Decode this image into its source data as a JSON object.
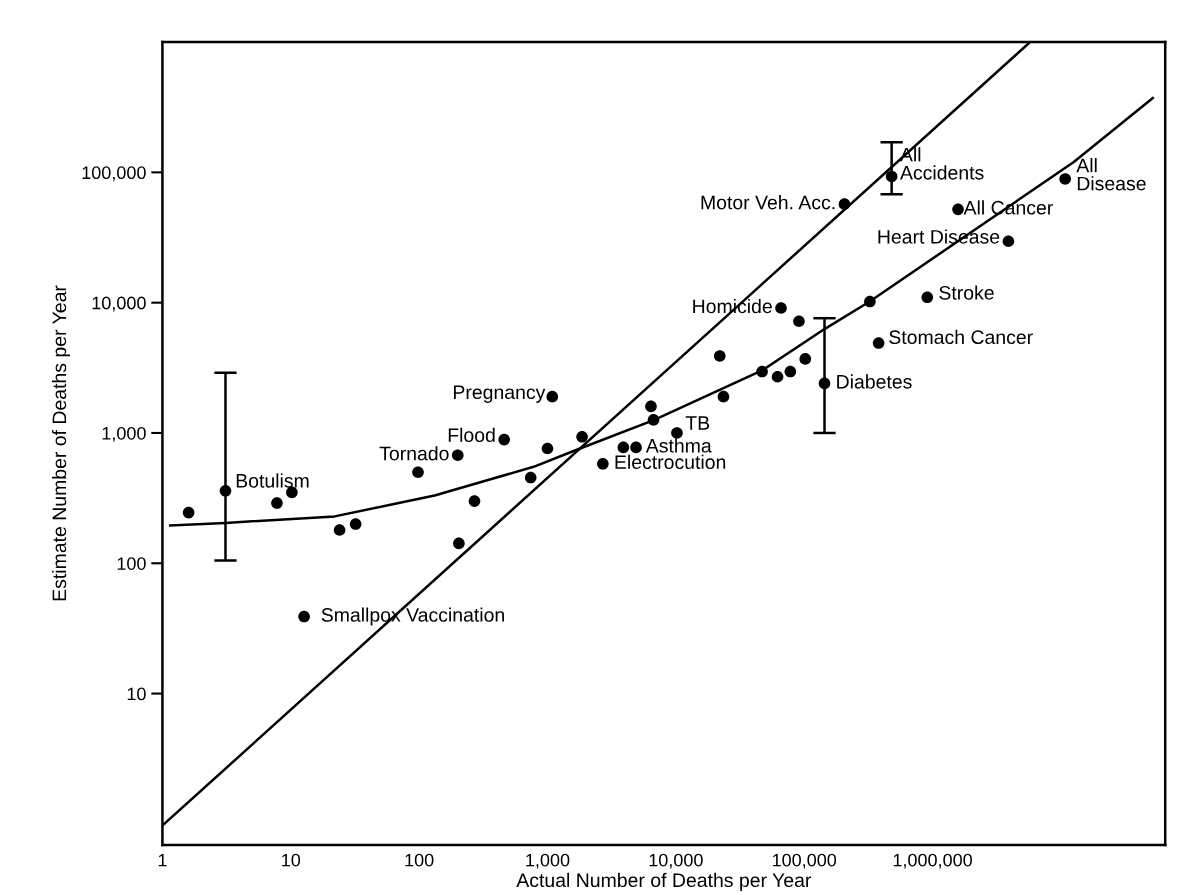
{
  "chart_data": {
    "type": "scatter",
    "xlabel": "Actual Number of Deaths per Year",
    "ylabel": "Estimate Number of Deaths per Year",
    "log": "xy",
    "grid": false,
    "legend": false,
    "line_style": "solid",
    "xlim": [
      1,
      65000000
    ],
    "ylim": [
      0.69,
      1000000
    ],
    "xticks": [
      1,
      10,
      {
        "value": 100,
        "label": "100"
      },
      {
        "value": 1000,
        "label": "1,000"
      },
      {
        "value": 10000,
        "label": "10,000"
      },
      {
        "value": 100000,
        "label": "100,000"
      },
      {
        "value": 1000000,
        "label": "1,000,000"
      }
    ],
    "yticks": [
      10,
      100,
      {
        "value": 1000,
        "label": "1,000"
      },
      {
        "value": 10000,
        "label": "10,000"
      },
      {
        "value": 100000,
        "label": "100,000"
      }
    ],
    "series": [
      {
        "type": "line",
        "marker": "none",
        "color": "#000000",
        "x": [
          1,
          5750000
        ],
        "values": [
          0.97,
          1000000
        ]
      },
      {
        "type": "line",
        "marker": "none",
        "color": "#000000",
        "x": [
          1.15,
          3.1,
          22,
          132,
          780,
          1580,
          6800,
          47000,
          145000,
          324000,
          12600000,
          52000000
        ],
        "values": [
          195,
          204,
          229,
          331,
          550,
          724,
          1260,
          3020,
          6300,
          10200,
          120000,
          372000
        ]
      },
      {
        "marker": "circle",
        "color": "#000000",
        "x": [
          1.6,
          3.1,
          7.8,
          10.2,
          24,
          32,
          12.7,
          98,
          200,
          460,
          204,
          270,
          1090,
          740,
          1000,
          1860,
          2700,
          3900,
          4900,
          10200,
          6400,
          6700,
          23500,
          22000,
          66000,
          91000,
          47000,
          62000,
          78000,
          102000,
          144000,
          325000,
          380000,
          910000,
          206000,
          480000,
          1580000,
          3900000,
          10800000
        ],
        "values": [
          245,
          360,
          290,
          350,
          180,
          200,
          39,
          500,
          675,
          890,
          142,
          300,
          1900,
          455,
          760,
          935,
          580,
          775,
          775,
          1000,
          1600,
          1260,
          1900,
          3900,
          9100,
          7200,
          2960,
          2700,
          2960,
          3700,
          2400,
          10200,
          4900,
          11000,
          57000,
          93000,
          52000,
          29600,
          89000
        ],
        "errors": [
          null,
          [
            105,
            2900
          ],
          null,
          null,
          null,
          null,
          null,
          null,
          null,
          null,
          null,
          null,
          null,
          null,
          null,
          null,
          null,
          null,
          null,
          null,
          null,
          null,
          null,
          null,
          null,
          null,
          null,
          null,
          null,
          null,
          [
            1000,
            7600
          ],
          null,
          null,
          null,
          null,
          [
            68000,
            170000
          ],
          null,
          null,
          null
        ]
      }
    ],
    "annotations": [
      {
        "text": "Botulism",
        "x": 3.1,
        "y": 360
      },
      {
        "text": "Smallpox Vaccination",
        "x": 12.7,
        "y": 39
      },
      {
        "text": "Tornado",
        "x": 200,
        "y": 675
      },
      {
        "text": "Flood",
        "x": 460,
        "y": 890
      },
      {
        "text": "Pregnancy",
        "x": 1090,
        "y": 1900
      },
      {
        "text": "TB",
        "x": 10200,
        "y": 1000
      },
      {
        "text": "Asthma",
        "x": 4900,
        "y": 775
      },
      {
        "text": "Electrocution",
        "x": 2700,
        "y": 580
      },
      {
        "text": "Homicide",
        "x": 66000,
        "y": 9100
      },
      {
        "text": "Diabetes",
        "x": 144000,
        "y": 2400
      },
      {
        "text": "Stomach Cancer",
        "x": 380000,
        "y": 4900
      },
      {
        "text": "Stroke",
        "x": 910000,
        "y": 11000
      },
      {
        "text": "Motor Veh. Acc.",
        "x": 206000,
        "y": 57000
      },
      {
        "text": "All\nAccidents",
        "x": 480000,
        "y": 93000
      },
      {
        "text": "All Cancer",
        "x": 1580000,
        "y": 52000
      },
      {
        "text": "Heart Disease",
        "x": 3900000,
        "y": 29600
      },
      {
        "text": "All\nDisease",
        "x": 10800000,
        "y": 89000
      }
    ]
  }
}
